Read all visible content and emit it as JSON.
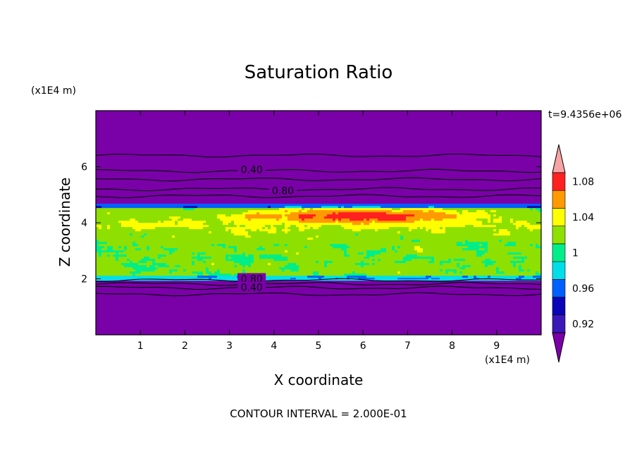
{
  "chart_data": {
    "type": "heatmap",
    "title": "Saturation Ratio",
    "xlabel": "X coordinate",
    "ylabel": "Z coordinate",
    "x_units": "(x1E4 m)",
    "y_units": "(x1E4 m)",
    "time_label": "t=9.4356e+06",
    "contour_note": "CONTOUR INTERVAL = 2.000E-01",
    "xlim": [
      0,
      10
    ],
    "ylim": [
      0,
      8
    ],
    "x_ticks": [
      "1",
      "2",
      "3",
      "4",
      "5",
      "6",
      "7",
      "8",
      "9"
    ],
    "y_ticks": [
      "2",
      "4",
      "6"
    ],
    "contour_labels": [
      {
        "text": "0.40",
        "x": 3.5,
        "z": 5.9
      },
      {
        "text": "0.80",
        "x": 4.2,
        "z": 5.15
      },
      {
        "text": "0.80",
        "x": 3.5,
        "z": 2.0
      },
      {
        "text": "0.40",
        "x": 3.5,
        "z": 1.7
      }
    ],
    "colorbar": {
      "levels": [
        0.92,
        0.94,
        0.96,
        0.98,
        1.0,
        1.02,
        1.04,
        1.06,
        1.08,
        1.1
      ],
      "tick_labels": [
        "0.92",
        "0.96",
        "1",
        "1.04",
        "1.08"
      ],
      "colors": [
        "#7a00a8",
        "#3a19b8",
        "#0b05b8",
        "#0060ff",
        "#00dfe8",
        "#00ee88",
        "#8ee000",
        "#ffff00",
        "#ff9a00",
        "#ff2020",
        "#f7a4a4"
      ]
    },
    "background_value_color": "#7a00a8"
  }
}
